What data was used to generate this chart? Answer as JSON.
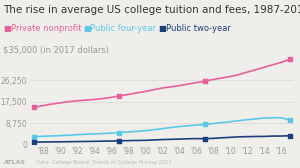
{
  "title": "The rise in average US college tuition and fees, 1987-2017",
  "ylabel_top": "$35,000 (in 2017 dollars)",
  "series": {
    "Private nonprofit": {
      "color": "#e8609a",
      "years": [
        1987,
        1988,
        1989,
        1990,
        1991,
        1992,
        1993,
        1994,
        1995,
        1996,
        1997,
        1998,
        1999,
        2000,
        2001,
        2002,
        2003,
        2004,
        2005,
        2006,
        2007,
        2008,
        2009,
        2010,
        2011,
        2012,
        2013,
        2014,
        2015,
        2016,
        2017
      ],
      "values": [
        15160,
        15840,
        16450,
        16950,
        17450,
        17800,
        18100,
        18350,
        18700,
        19200,
        19800,
        20400,
        21000,
        21600,
        22300,
        23000,
        23500,
        24000,
        24600,
        25200,
        25800,
        26500,
        27100,
        27700,
        28500,
        29500,
        30500,
        31500,
        32500,
        33500,
        34740
      ],
      "marker_years": [
        1987,
        1997,
        2007,
        2017
      ],
      "marker_values": [
        15160,
        19800,
        25800,
        34740
      ]
    },
    "Public four-year": {
      "color": "#5bc8e8",
      "years": [
        1987,
        1988,
        1989,
        1990,
        1991,
        1992,
        1993,
        1994,
        1995,
        1996,
        1997,
        1998,
        1999,
        2000,
        2001,
        2002,
        2003,
        2004,
        2005,
        2006,
        2007,
        2008,
        2009,
        2010,
        2011,
        2012,
        2013,
        2014,
        2015,
        2016,
        2017
      ],
      "values": [
        3190,
        3320,
        3470,
        3590,
        3800,
        4000,
        4170,
        4300,
        4450,
        4640,
        4860,
        5100,
        5360,
        5600,
        5990,
        6450,
        6900,
        7300,
        7600,
        7900,
        8200,
        8550,
        8900,
        9300,
        9700,
        10100,
        10450,
        10780,
        10900,
        10900,
        9970
      ],
      "marker_years": [
        1987,
        1997,
        2007,
        2017
      ],
      "marker_values": [
        3190,
        4860,
        8200,
        9970
      ]
    },
    "Public two-year": {
      "color": "#1a3f7a",
      "years": [
        1987,
        1988,
        1989,
        1990,
        1991,
        1992,
        1993,
        1994,
        1995,
        1996,
        1997,
        1998,
        1999,
        2000,
        2001,
        2002,
        2003,
        2004,
        2005,
        2006,
        2007,
        2008,
        2009,
        2010,
        2011,
        2012,
        2013,
        2014,
        2015,
        2016,
        2017
      ],
      "values": [
        970,
        1010,
        1050,
        1080,
        1130,
        1180,
        1230,
        1290,
        1350,
        1400,
        1490,
        1570,
        1640,
        1700,
        1840,
        2000,
        2100,
        2190,
        2320,
        2400,
        2360,
        2500,
        2720,
        2910,
        3100,
        3200,
        3260,
        3290,
        3430,
        3440,
        3570
      ],
      "marker_years": [
        1987,
        1997,
        2007,
        2017
      ],
      "marker_values": [
        970,
        1490,
        2360,
        3570
      ]
    }
  },
  "yticks": [
    0,
    8750,
    17500,
    26250
  ],
  "ytick_labels": [
    "0",
    "8,750",
    "17,500",
    "26,250"
  ],
  "xtick_years": [
    1988,
    1990,
    1992,
    1994,
    1996,
    1998,
    2000,
    2002,
    2004,
    2006,
    2008,
    2010,
    2012,
    2014,
    2016
  ],
  "xtick_labels": [
    "'88",
    "'90",
    "'92",
    "'94",
    "'96",
    "'98",
    "'00",
    "'02",
    "'04",
    "'06",
    "'08",
    "'10",
    "'12",
    "'14",
    "'16"
  ],
  "ylim": [
    0,
    37000
  ],
  "xlim": [
    1986.5,
    2017.5
  ],
  "legend_labels": [
    "Private nonprofit",
    "Public four-year",
    "Public two-year"
  ],
  "legend_colors": [
    "#e8609a",
    "#5bc8e8",
    "#1a3f7a"
  ],
  "footer_left": "ATLAS",
  "footer_right": "Data: College Board: Trends in College Pricing 2017",
  "bg_color": "#f0eeeb",
  "title_fontsize": 7.5,
  "label_fontsize": 6.0,
  "tick_fontsize": 5.5,
  "legend_fontsize": 6.0
}
